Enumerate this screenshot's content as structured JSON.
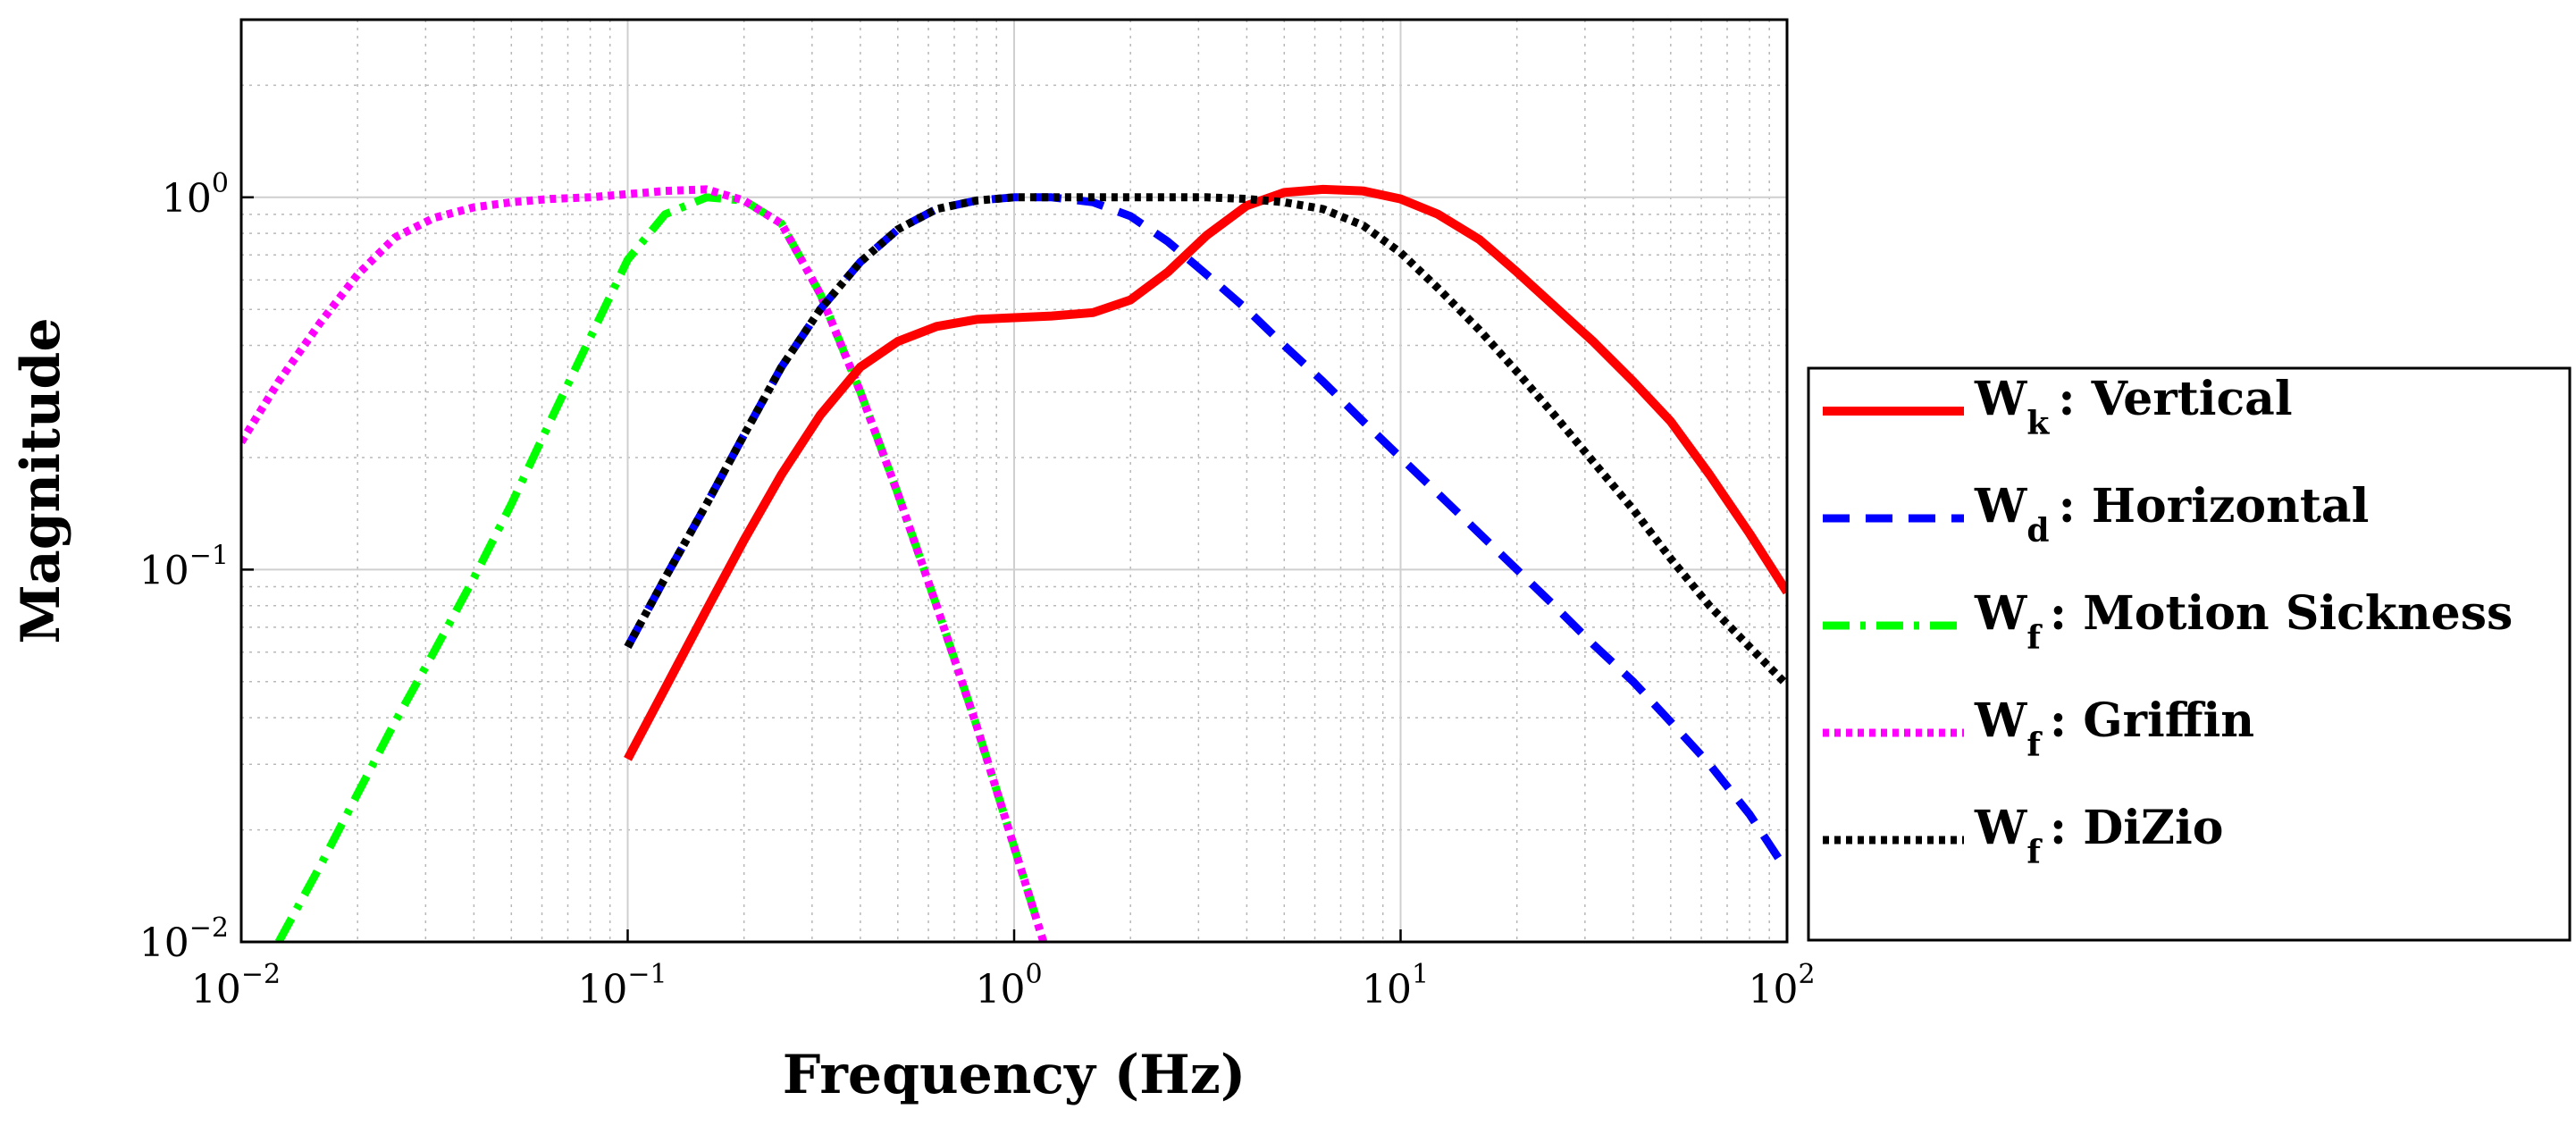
{
  "chart_data": {
    "type": "line",
    "xscale": "log",
    "yscale": "log",
    "xlim": [
      0.01,
      100
    ],
    "ylim": [
      0.01,
      3
    ],
    "xlabel": "Frequency (Hz)",
    "ylabel": "Magnitude",
    "grid": true,
    "minor_grid": true,
    "legend_position": "right-outside",
    "x_ticks": [
      {
        "base": "10",
        "exp": "−2",
        "value": 0.01
      },
      {
        "base": "10",
        "exp": "−1",
        "value": 0.1
      },
      {
        "base": "10",
        "exp": "0",
        "value": 1
      },
      {
        "base": "10",
        "exp": "1",
        "value": 10
      },
      {
        "base": "10",
        "exp": "2",
        "value": 100
      }
    ],
    "y_ticks": [
      {
        "base": "10",
        "exp": "−2",
        "value": 0.01
      },
      {
        "base": "10",
        "exp": "−1",
        "value": 0.1
      },
      {
        "base": "10",
        "exp": "0",
        "value": 1
      }
    ],
    "series": [
      {
        "name": "W_k : Vertical",
        "main": "W",
        "sub": "k",
        "desc": ": Vertical",
        "color": "#ff0000",
        "style": "solid",
        "x": [
          0.1,
          0.125,
          0.16,
          0.2,
          0.25,
          0.315,
          0.4,
          0.5,
          0.63,
          0.8,
          1.0,
          1.25,
          1.6,
          2.0,
          2.5,
          3.15,
          4.0,
          5.0,
          6.3,
          8.0,
          10,
          12.5,
          16,
          20,
          25,
          31.5,
          40,
          50,
          63,
          80,
          100
        ],
        "y": [
          0.031,
          0.048,
          0.078,
          0.12,
          0.18,
          0.26,
          0.35,
          0.41,
          0.45,
          0.47,
          0.475,
          0.48,
          0.49,
          0.53,
          0.63,
          0.79,
          0.95,
          1.03,
          1.05,
          1.04,
          0.99,
          0.9,
          0.77,
          0.63,
          0.51,
          0.41,
          0.32,
          0.25,
          0.18,
          0.125,
          0.087
        ]
      },
      {
        "name": "W_d : Horizontal",
        "main": "W",
        "sub": "d",
        "desc": ": Horizontal",
        "color": "#0000ff",
        "style": "dashed",
        "x": [
          0.1,
          0.125,
          0.16,
          0.2,
          0.25,
          0.315,
          0.4,
          0.5,
          0.63,
          0.8,
          1.0,
          1.25,
          1.6,
          2.0,
          2.5,
          3.15,
          4.0,
          5.0,
          6.3,
          8.0,
          10,
          12.5,
          16,
          20,
          25,
          31.5,
          40,
          50,
          63,
          80,
          100
        ],
        "y": [
          0.062,
          0.095,
          0.15,
          0.23,
          0.35,
          0.5,
          0.67,
          0.82,
          0.93,
          0.98,
          1.0,
          1.0,
          0.97,
          0.89,
          0.76,
          0.62,
          0.5,
          0.4,
          0.32,
          0.25,
          0.2,
          0.16,
          0.125,
          0.1,
          0.08,
          0.063,
          0.05,
          0.039,
          0.03,
          0.022,
          0.0155
        ]
      },
      {
        "name": "W_f : Motion Sickness",
        "main": "W",
        "sub": "f",
        "desc": ": Motion Sickness",
        "color": "#00ff00",
        "style": "dashdot",
        "x": [
          0.0125,
          0.016,
          0.02,
          0.025,
          0.0315,
          0.04,
          0.05,
          0.063,
          0.08,
          0.1,
          0.125,
          0.16,
          0.2,
          0.25,
          0.315,
          0.4,
          0.5,
          0.63,
          0.8,
          1.0,
          1.25
        ],
        "y": [
          0.01,
          0.016,
          0.025,
          0.039,
          0.06,
          0.095,
          0.15,
          0.25,
          0.42,
          0.68,
          0.9,
          1.0,
          0.98,
          0.85,
          0.55,
          0.3,
          0.16,
          0.08,
          0.038,
          0.018,
          0.0085
        ]
      },
      {
        "name": "W_f : Griffin",
        "main": "W",
        "sub": "f",
        "desc": ": Griffin",
        "color": "#ff00ff",
        "style": "dotted",
        "x": [
          0.01,
          0.0125,
          0.016,
          0.02,
          0.025,
          0.0315,
          0.04,
          0.05,
          0.063,
          0.08,
          0.1,
          0.125,
          0.16,
          0.2,
          0.25,
          0.315,
          0.4,
          0.5,
          0.63,
          0.8,
          1.0,
          1.25
        ],
        "y": [
          0.22,
          0.32,
          0.46,
          0.62,
          0.78,
          0.88,
          0.94,
          0.97,
          0.99,
          1.0,
          1.02,
          1.04,
          1.05,
          0.98,
          0.85,
          0.55,
          0.3,
          0.16,
          0.08,
          0.038,
          0.018,
          0.0085
        ]
      },
      {
        "name": "W_f : DiZio",
        "main": "W",
        "sub": "f",
        "desc": ": DiZio",
        "color": "#000000",
        "style": "dotted",
        "x": [
          0.1,
          0.125,
          0.16,
          0.2,
          0.25,
          0.315,
          0.4,
          0.5,
          0.63,
          0.8,
          1.0,
          1.25,
          1.6,
          2.0,
          2.5,
          3.15,
          4.0,
          5.0,
          6.3,
          8.0,
          10,
          12.5,
          16,
          20,
          25,
          31.5,
          40,
          50,
          63,
          80,
          100
        ],
        "y": [
          0.062,
          0.095,
          0.15,
          0.23,
          0.35,
          0.5,
          0.67,
          0.82,
          0.93,
          0.98,
          1.0,
          1.0,
          1.0,
          1.0,
          1.0,
          1.0,
          0.99,
          0.97,
          0.93,
          0.84,
          0.71,
          0.57,
          0.44,
          0.34,
          0.26,
          0.195,
          0.145,
          0.107,
          0.08,
          0.062,
          0.049
        ]
      }
    ]
  }
}
